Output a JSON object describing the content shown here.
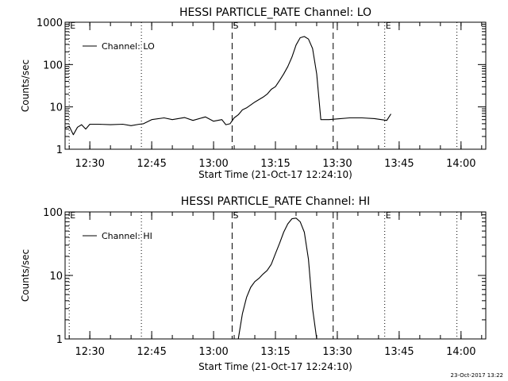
{
  "footer": {
    "timestamp": "23-Oct-2017 13:22"
  },
  "chart_data": [
    {
      "type": "line",
      "title": "HESSI PARTICLE_RATE Channel: LO",
      "xlabel": "Start Time (21-Oct-17 12:24:10)",
      "ylabel": "Counts/sec",
      "yscale": "log",
      "ylim": [
        1,
        1000
      ],
      "xlim": [
        "12:24",
        "14:06"
      ],
      "y_ticks": [
        "1",
        "10",
        "100",
        "1000"
      ],
      "x_ticks": [
        "12:30",
        "12:45",
        "13:00",
        "13:15",
        "13:30",
        "13:45",
        "14:00"
      ],
      "legend": {
        "label": "Channel: LO",
        "position": "top-left"
      },
      "markers": [
        {
          "label": "E",
          "time": "12:25",
          "style": "dotted"
        },
        {
          "label": "",
          "time": "12:42.5",
          "style": "dotted"
        },
        {
          "label": "S",
          "time": "13:04.5",
          "style": "dashed"
        },
        {
          "label": "",
          "time": "13:29",
          "style": "dashed"
        },
        {
          "label": "E",
          "time": "13:41.5",
          "style": "dotted"
        },
        {
          "label": "",
          "time": "13:59",
          "style": "dotted"
        }
      ],
      "series": [
        {
          "name": "Channel: LO",
          "x": [
            "12:24",
            "12:25",
            "12:26",
            "12:27",
            "12:28",
            "12:29",
            "12:30",
            "12:32",
            "12:35",
            "12:38",
            "12:40",
            "12:42",
            "12:43",
            "12:45",
            "12:48",
            "12:50",
            "12:53",
            "12:55",
            "12:58",
            "13:00",
            "13:02",
            "13:03",
            "13:04",
            "13:05",
            "13:06",
            "13:07",
            "13:08",
            "13:10",
            "13:12",
            "13:13",
            "13:14",
            "13:15",
            "13:16",
            "13:17",
            "13:18",
            "13:19",
            "13:20",
            "13:21",
            "13:22",
            "13:23",
            "13:24",
            "13:25",
            "13:26",
            "13:28",
            "13:30",
            "13:33",
            "13:36",
            "13:39",
            "13:42",
            "13:43"
          ],
          "values": [
            3.2,
            3.5,
            2.2,
            3.3,
            3.8,
            3.0,
            3.9,
            3.9,
            3.8,
            3.9,
            3.6,
            3.9,
            4.0,
            5.0,
            5.5,
            5.0,
            5.6,
            4.8,
            5.8,
            4.6,
            5.0,
            3.8,
            4.0,
            5.5,
            6.5,
            8.5,
            9.5,
            13,
            17,
            20,
            26,
            30,
            42,
            60,
            90,
            150,
            290,
            430,
            460,
            400,
            240,
            60,
            5,
            5,
            5.2,
            5.5,
            5.5,
            5.3,
            4.8,
            6.8
          ]
        }
      ]
    },
    {
      "type": "line",
      "title": "HESSI PARTICLE_RATE Channel: HI",
      "xlabel": "Start Time (21-Oct-17 12:24:10)",
      "ylabel": "Counts/sec",
      "yscale": "log",
      "ylim": [
        1,
        100
      ],
      "xlim": [
        "12:24",
        "14:06"
      ],
      "y_ticks": [
        "1",
        "10",
        "100"
      ],
      "x_ticks": [
        "12:30",
        "12:45",
        "13:00",
        "13:15",
        "13:30",
        "13:45",
        "14:00"
      ],
      "legend": {
        "label": "Channel: HI",
        "position": "top-left"
      },
      "markers": [
        {
          "label": "E",
          "time": "12:25",
          "style": "dotted"
        },
        {
          "label": "",
          "time": "12:42.5",
          "style": "dotted"
        },
        {
          "label": "S",
          "time": "13:04.5",
          "style": "dashed"
        },
        {
          "label": "",
          "time": "13:29",
          "style": "dashed"
        },
        {
          "label": "E",
          "time": "13:41.5",
          "style": "dotted"
        },
        {
          "label": "",
          "time": "13:59",
          "style": "dotted"
        }
      ],
      "series": [
        {
          "name": "Channel: HI",
          "x": [
            "13:06",
            "13:07",
            "13:08",
            "13:09",
            "13:10",
            "13:11",
            "13:12",
            "13:13",
            "13:14",
            "13:15",
            "13:16",
            "13:17",
            "13:18",
            "13:19",
            "13:20",
            "13:21",
            "13:22",
            "13:23",
            "13:24",
            "13:25"
          ],
          "values": [
            1.0,
            2.5,
            4.5,
            6.5,
            8.0,
            9.0,
            10.5,
            12,
            15,
            22,
            32,
            48,
            65,
            78,
            80,
            70,
            48,
            18,
            3,
            1.0
          ]
        }
      ]
    }
  ]
}
